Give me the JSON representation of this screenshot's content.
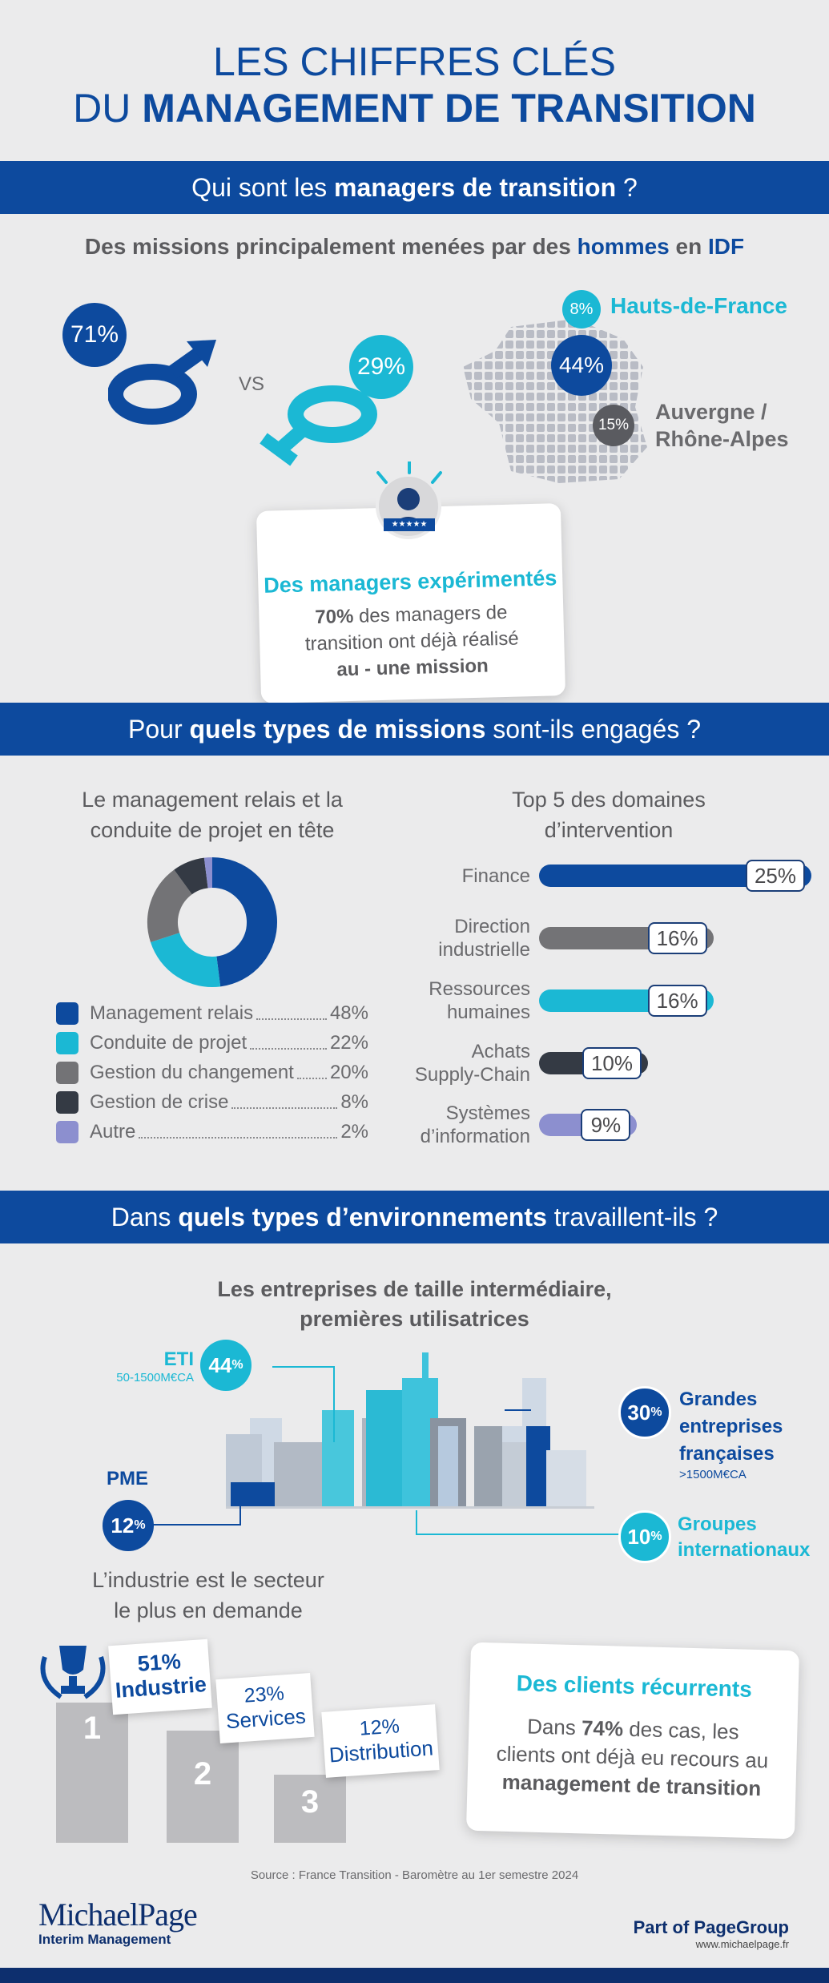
{
  "header": {
    "title_line1": "LES CHIFFRES CLÉS",
    "title_line2_prefix": "DU ",
    "title_line2_bold": "MANAGEMENT DE TRANSITION"
  },
  "section1": {
    "band_prefix": "Qui sont les ",
    "band_bold": "managers de transition",
    "band_suffix": " ?",
    "subtitle_prefix": "Des missions principalement menées par des ",
    "subtitle_bold1": "hommes",
    "subtitle_mid": " en ",
    "subtitle_bold2": "IDF",
    "male_pct": "71%",
    "vs": "VS",
    "female_pct": "29%",
    "regions": [
      {
        "pct": "8%",
        "name": "Hauts-de-France"
      },
      {
        "pct": "44%",
        "name": ""
      },
      {
        "pct": "15%",
        "name_line1": "Auvergne /",
        "name_line2": "Rhône-Alpes"
      }
    ],
    "card": {
      "title": "Des managers expérimentés",
      "line1_bold": "70%",
      "line1": " des managers de",
      "line2": "transition ont déjà réalisé",
      "line3": "au - une mission",
      "stars": "★★★★★"
    }
  },
  "section2": {
    "band_prefix": "Pour ",
    "band_bold": "quels types de missions",
    "band_suffix": " sont-ils engagés ?",
    "left_title_line1": "Le management relais et la",
    "left_title_line2": "conduite de projet en tête",
    "right_title_line1": "Top 5 des domaines",
    "right_title_line2": "d’intervention"
  },
  "chart_data": [
    {
      "type": "pie",
      "title": "Le management relais et la conduite de projet en tête",
      "categories": [
        "Management relais",
        "Conduite de projet",
        "Gestion du changement",
        "Gestion de crise",
        "Autre"
      ],
      "values": [
        48,
        22,
        20,
        8,
        2
      ],
      "labels": [
        "48%",
        "22%",
        "20%",
        "8%",
        "2%"
      ],
      "colors": [
        "#0d4a9e",
        "#1bb8d4",
        "#737376",
        "#343a44",
        "#8c8fcf"
      ]
    },
    {
      "type": "bar",
      "title": "Top 5 des domaines d’intervention",
      "categories": [
        "Finance",
        "Direction industrielle",
        "Ressources humaines",
        "Achats Supply-Chain",
        "Systèmes d’information"
      ],
      "category_lines": [
        [
          "Finance"
        ],
        [
          "Direction",
          "industrielle"
        ],
        [
          "Ressources",
          "humaines"
        ],
        [
          "Achats",
          "Supply-Chain"
        ],
        [
          "Systèmes",
          "d’information"
        ]
      ],
      "values": [
        25,
        16,
        16,
        10,
        9
      ],
      "labels": [
        "25%",
        "16%",
        "16%",
        "10%",
        "9%"
      ],
      "colors": [
        "#0d4a9e",
        "#737376",
        "#1bb8d4",
        "#343a44",
        "#8c8fcf"
      ]
    }
  ],
  "section3": {
    "band_prefix": "Dans ",
    "band_bold": "quels types d’environnements",
    "band_suffix": " travaillent-ils ?",
    "title_line1": "Les entreprises de taille intermédiaire,",
    "title_line2": "premières utilisatrices",
    "eti": {
      "label": "ETI",
      "sub": "50-1500M€CA",
      "pct": "44",
      "unit": "%"
    },
    "pme": {
      "label": "PME",
      "pct": "12",
      "unit": "%"
    },
    "grandes": {
      "pct": "30",
      "unit": "%",
      "line1": "Grandes",
      "line2": "entreprises",
      "line3": "françaises",
      "sub": ">1500M€CA"
    },
    "groupes": {
      "pct": "10",
      "unit": "%",
      "line1": "Groupes",
      "line2": "internationaux"
    }
  },
  "section4": {
    "title_line1": "L’industrie est le secteur",
    "title_line2": "le plus en demande",
    "podium": [
      {
        "rank": "1",
        "pct": "51%",
        "label": "Industrie"
      },
      {
        "rank": "2",
        "pct": "23%",
        "label": "Services"
      },
      {
        "rank": "3",
        "pct": "12%",
        "label": "Distribution"
      }
    ],
    "card": {
      "title": "Des clients récurrents",
      "line1_prefix": "Dans ",
      "line1_bold": "74%",
      "line1_suffix": " des cas, les",
      "line2": "clients ont déjà eu recours au",
      "line3": "management de transition"
    }
  },
  "footer": {
    "source": "Source : France Transition - Baromètre au 1er semestre 2024",
    "logo_main": "MichaelPage",
    "logo_sub": "Interim Management",
    "part_prefix": "Part of ",
    "part_bold": "PageGroup",
    "url": "www.michaelpage.fr"
  }
}
